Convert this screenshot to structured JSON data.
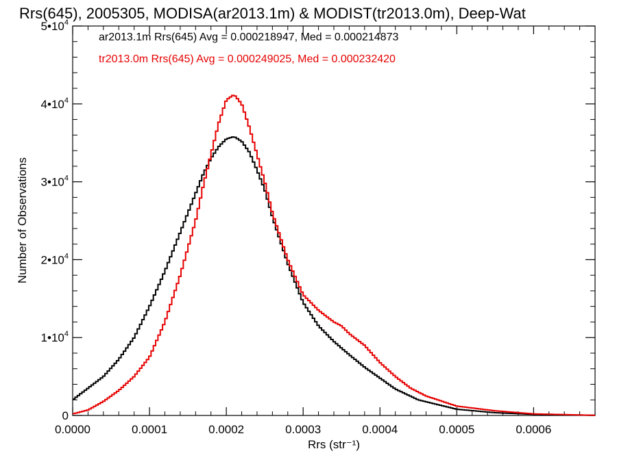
{
  "chart_data": {
    "type": "line",
    "title": "Rrs(645), 2005305, MODISA(ar2013.1m) & MODIST(tr2013.0m), Deep-Wat",
    "xlabel": "Rrs (str⁻¹)",
    "ylabel": "Number of Observations",
    "xlim": [
      0,
      0.00068
    ],
    "ylim": [
      0,
      50000
    ],
    "x_ticks": [
      "0.0000",
      "0.0001",
      "0.0002",
      "0.0003",
      "0.0004",
      "0.0005",
      "0.0006"
    ],
    "x_tick_values": [
      0,
      0.0001,
      0.0002,
      0.0003,
      0.0004,
      0.0005,
      0.0006
    ],
    "y_tick_values": [
      0,
      10000,
      20000,
      30000,
      40000,
      50000
    ],
    "y_ticks": [
      {
        "mant": "0",
        "exp": ""
      },
      {
        "mant": "1•10",
        "exp": "4"
      },
      {
        "mant": "2•10",
        "exp": "4"
      },
      {
        "mant": "3•10",
        "exp": "4"
      },
      {
        "mant": "4•10",
        "exp": "4"
      },
      {
        "mant": "5•10",
        "exp": "4"
      }
    ],
    "legend_placement": "top-left",
    "series": [
      {
        "name": "ar2013.1m Rrs(645) Avg = 0.000218947, Med = 0.000214873",
        "color": "#000000",
        "x": [
          0,
          2e-05,
          4e-05,
          6e-05,
          8e-05,
          0.0001,
          0.00012,
          0.00014,
          0.00016,
          0.00017,
          0.00018,
          0.00019,
          0.0002,
          0.00021,
          0.00022,
          0.00023,
          0.00024,
          0.00025,
          0.00026,
          0.00028,
          0.0003,
          0.00032,
          0.00034,
          0.00036,
          0.00038,
          0.0004,
          0.00042,
          0.00045,
          0.0005,
          0.00055,
          0.0006,
          0.00068
        ],
        "y": [
          2000,
          3500,
          5000,
          7200,
          10000,
          14000,
          18500,
          23500,
          28500,
          31000,
          33000,
          34500,
          35500,
          35800,
          35200,
          33800,
          31500,
          29000,
          25500,
          19500,
          14500,
          11500,
          9500,
          7800,
          6200,
          4800,
          3400,
          2000,
          800,
          350,
          150,
          20
        ]
      },
      {
        "name": "tr2013.0m Rrs(645) Avg = 0.000249025, Med = 0.000232420",
        "color": "#e60000",
        "x": [
          0,
          2e-05,
          4e-05,
          6e-05,
          8e-05,
          0.0001,
          0.00012,
          0.00014,
          0.00016,
          0.00017,
          0.00018,
          0.00019,
          0.0002,
          0.00021,
          0.00022,
          0.00023,
          0.00024,
          0.00025,
          0.00026,
          0.00028,
          0.0003,
          0.00032,
          0.00034,
          0.00035,
          0.00036,
          0.00038,
          0.0004,
          0.00042,
          0.00044,
          0.00046,
          0.0005,
          0.00055,
          0.0006,
          0.00068
        ],
        "y": [
          200,
          700,
          1800,
          3200,
          5000,
          7500,
          12000,
          18000,
          25000,
          29500,
          33500,
          37500,
          40500,
          41200,
          40000,
          37000,
          33500,
          30000,
          26000,
          20000,
          15500,
          13500,
          12000,
          11500,
          10500,
          9000,
          6800,
          5000,
          3500,
          2500,
          1200,
          600,
          200,
          20
        ]
      }
    ]
  }
}
